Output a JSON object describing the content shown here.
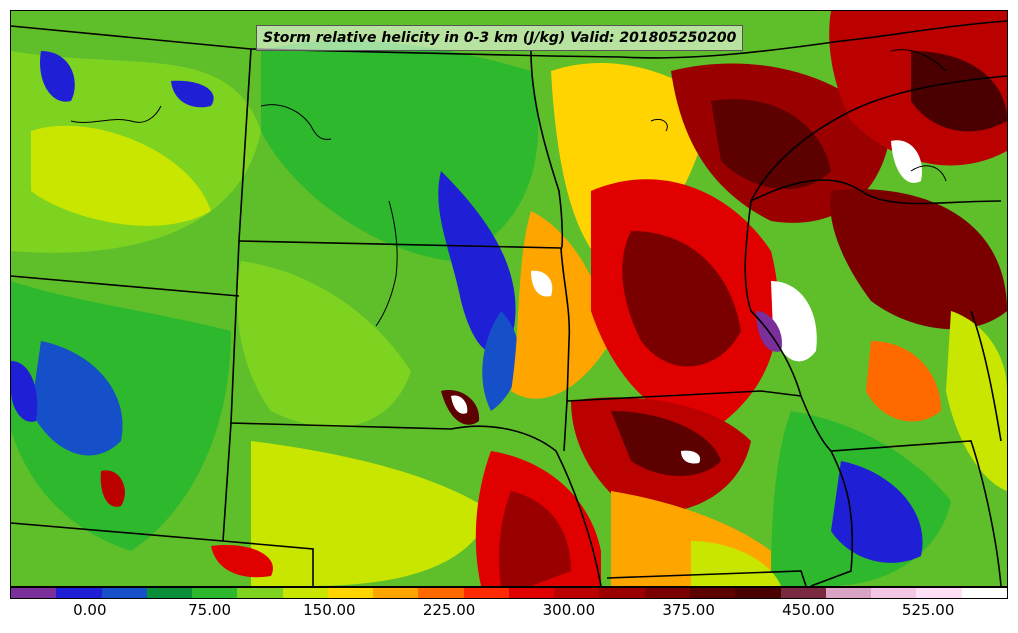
{
  "title": "Storm relative helicity in 0-3 km (J/kg) Valid: 201805250200",
  "colorbar": {
    "colors": [
      "#7b2f9a",
      "#1f1fd6",
      "#1650c8",
      "#0b8f3a",
      "#2eb82e",
      "#7ed321",
      "#c8e600",
      "#ffd400",
      "#ffa500",
      "#ff6a00",
      "#ff2a00",
      "#e00000",
      "#bb0000",
      "#9a0000",
      "#7a0000",
      "#5c0000",
      "#4a0000",
      "#7a2a40",
      "#d9a3c4",
      "#f3c6e6",
      "#ffdff5",
      "#ffffff"
    ],
    "tick_labels": [
      "0.00",
      "75.00",
      "150.00",
      "225.00",
      "300.00",
      "375.00",
      "450.00",
      "525.00"
    ],
    "range": [
      -50,
      575
    ]
  },
  "field": {
    "variable": "Storm relative helicity 0-3 km",
    "units": "J/kg",
    "valid_time": "201805250200"
  }
}
